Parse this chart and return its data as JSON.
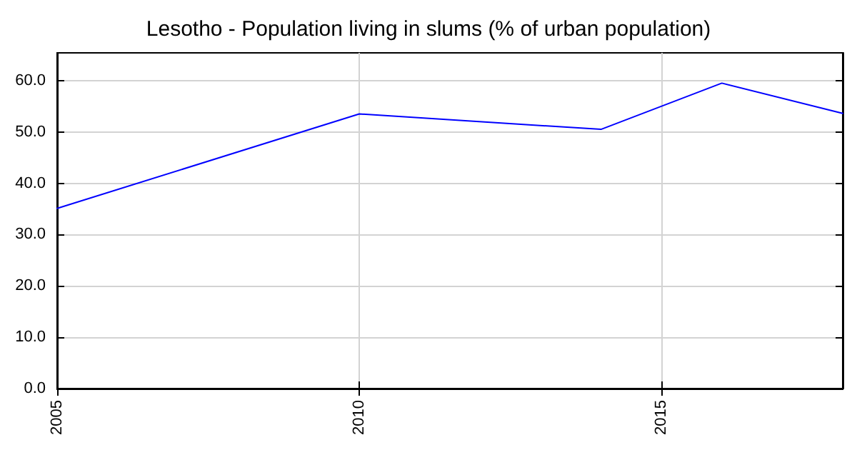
{
  "chart_data": {
    "type": "line",
    "title": "Lesotho - Population living in slums (% of urban population)",
    "x": [
      2005,
      2010,
      2014,
      2016,
      2018
    ],
    "series": [
      {
        "color": "#0000ff",
        "values": [
          35.1,
          53.5,
          50.5,
          59.5,
          53.6
        ]
      }
    ],
    "xlim": [
      2005,
      2018
    ],
    "xticks": [
      2005,
      2010,
      2015
    ],
    "ylim": [
      0,
      65.4
    ],
    "yticks": [
      {
        "value": 0,
        "label": "0.0"
      },
      {
        "value": 10,
        "label": "10.0"
      },
      {
        "value": 20,
        "label": "20.0"
      },
      {
        "value": 30,
        "label": "30.0"
      },
      {
        "value": 40,
        "label": "40.0"
      },
      {
        "value": 50,
        "label": "50.0"
      },
      {
        "value": 60,
        "label": "60.0"
      }
    ],
    "grid": true,
    "marker": "none",
    "line_style": "solid"
  }
}
